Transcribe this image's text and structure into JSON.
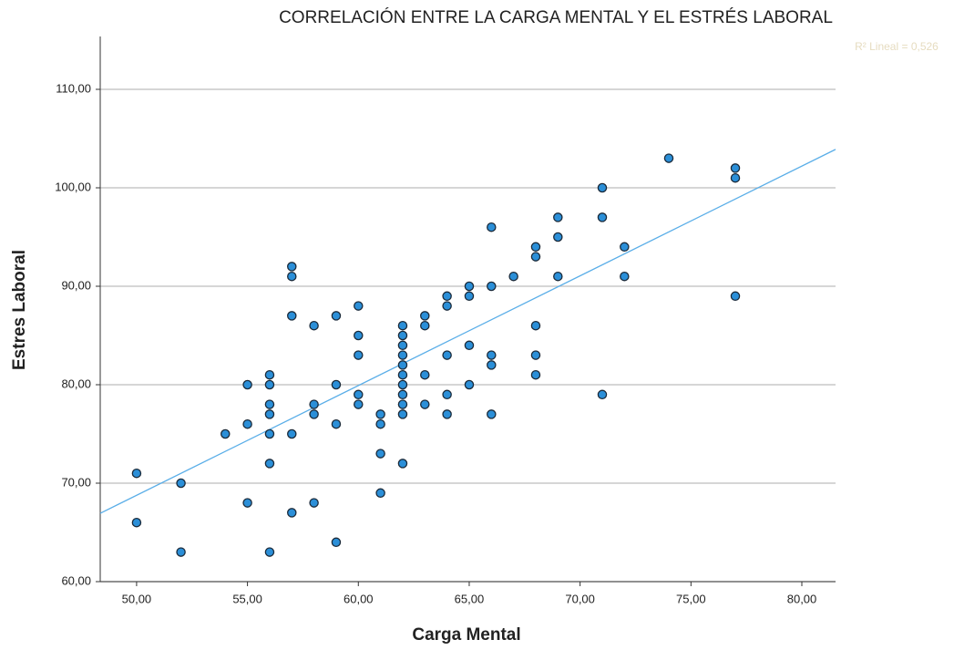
{
  "chart_data": {
    "type": "scatter",
    "title": "CORRELACIÓN ENTRE LA CARGA MENTAL Y EL ESTRÉS LABORAL",
    "x_label": "Carga Mental",
    "y_label": "Estres Laboral",
    "annotation": "R² Lineal = 0,526",
    "xlim": [
      48.36,
      81.52
    ],
    "ylim": [
      60,
      115.37
    ],
    "xticks": [
      {
        "value": 50,
        "label": "50,00"
      },
      {
        "value": 55,
        "label": "55,00"
      },
      {
        "value": 60,
        "label": "60,00"
      },
      {
        "value": 65,
        "label": "65,00"
      },
      {
        "value": 70,
        "label": "70,00"
      },
      {
        "value": 75,
        "label": "75,00"
      },
      {
        "value": 80,
        "label": "80,00"
      }
    ],
    "yticks": [
      {
        "value": 60,
        "label": "60,00"
      },
      {
        "value": 70,
        "label": "70,00"
      },
      {
        "value": 80,
        "label": "80,00"
      },
      {
        "value": 90,
        "label": "90,00"
      },
      {
        "value": 100,
        "label": "100,00"
      },
      {
        "value": 110,
        "label": "110,00"
      }
    ],
    "grid": true,
    "series": [
      {
        "color": "#2b8fd8",
        "x": [
          50,
          50,
          52,
          52,
          54,
          55,
          55,
          55,
          56,
          56,
          56,
          56,
          56,
          56,
          56,
          57,
          57,
          57,
          57,
          57,
          58,
          58,
          58,
          58,
          59,
          59,
          59,
          59,
          60,
          60,
          60,
          60,
          60,
          61,
          61,
          61,
          61,
          62,
          62,
          62,
          62,
          62,
          62,
          62,
          62,
          62,
          62,
          62,
          63,
          63,
          63,
          63,
          64,
          64,
          64,
          64,
          64,
          65,
          65,
          65,
          65,
          66,
          66,
          66,
          66,
          66,
          67,
          68,
          68,
          68,
          68,
          68,
          69,
          69,
          69,
          71,
          71,
          71,
          72,
          72,
          74,
          77,
          77,
          77
        ],
        "values": [
          71,
          66,
          70,
          63,
          75,
          80,
          76,
          68,
          81,
          80,
          78,
          77,
          75,
          72,
          63,
          92,
          91,
          87,
          75,
          67,
          86,
          78,
          77,
          68,
          87,
          80,
          76,
          64,
          88,
          85,
          83,
          79,
          78,
          77,
          76,
          73,
          69,
          86,
          85,
          84,
          83,
          82,
          81,
          80,
          79,
          78,
          77,
          72,
          87,
          86,
          81,
          78,
          89,
          88,
          83,
          79,
          77,
          90,
          89,
          84,
          80,
          96,
          90,
          83,
          82,
          77,
          91,
          94,
          93,
          86,
          83,
          81,
          97,
          95,
          91,
          100,
          97,
          79,
          94,
          91,
          103,
          102,
          101,
          89
        ]
      }
    ],
    "fit_line": {
      "color": "#5aaee8",
      "x": [
        48.36,
        81.52
      ],
      "values": [
        66.94,
        103.9
      ]
    }
  }
}
